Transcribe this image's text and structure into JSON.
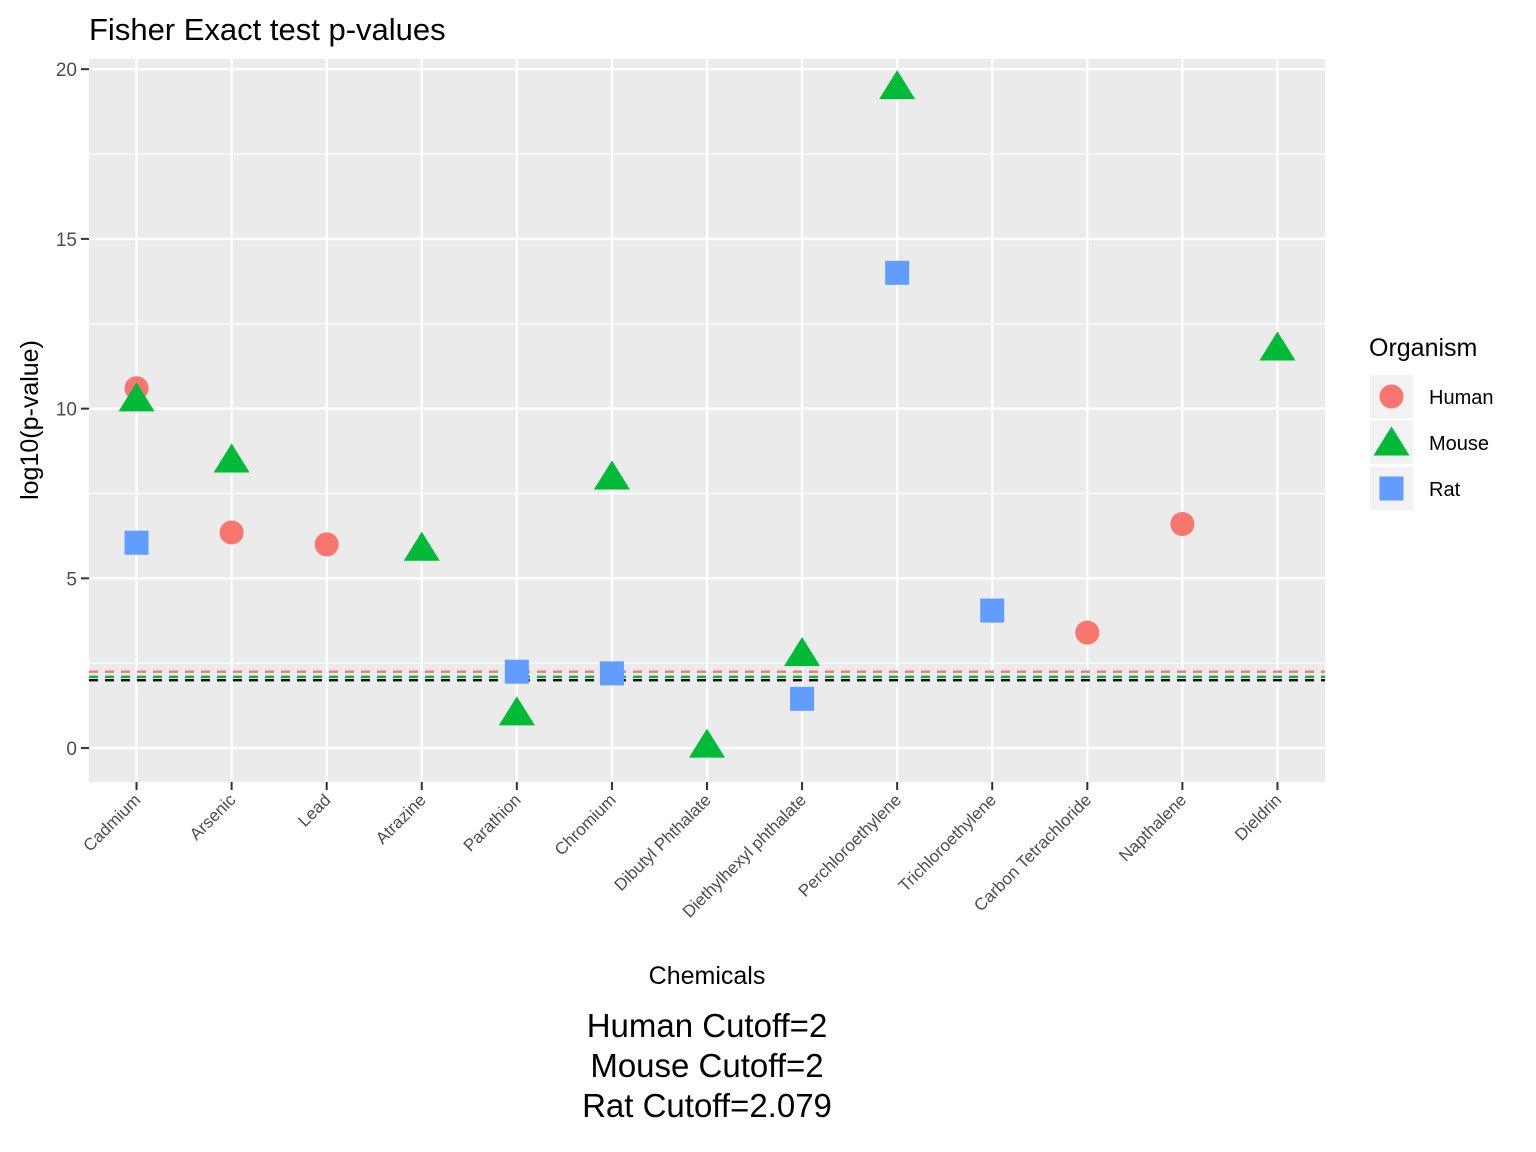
{
  "chart_data": {
    "type": "scatter",
    "title": "Fisher Exact test p-values",
    "xlabel": "Chemicals",
    "ylabel": "log10(p-value)",
    "ylim": [
      -1,
      20.3
    ],
    "yticks": [
      0,
      5,
      10,
      15,
      20
    ],
    "grid": true,
    "legend_title": "Organism",
    "legend_position": "right",
    "categories": [
      "Cadmium",
      "Arsenic",
      "Lead",
      "Atrazine",
      "Parathion",
      "Chromium",
      "Dibutyl Phthalate",
      "Diethylhexyl phthalate",
      "Perchloroethylene",
      "Trichloroethylene",
      "Carbon Tetrachloride",
      "Napthalene",
      "Dieldrin"
    ],
    "series": [
      {
        "name": "Human",
        "color": "#F8766D",
        "marker": "circle",
        "points": [
          {
            "x": "Cadmium",
            "y": 10.6
          },
          {
            "x": "Arsenic",
            "y": 6.35
          },
          {
            "x": "Lead",
            "y": 6.0
          },
          {
            "x": "Carbon Tetrachloride",
            "y": 3.4
          },
          {
            "x": "Napthalene",
            "y": 6.6
          }
        ]
      },
      {
        "name": "Mouse",
        "color": "#00BA38",
        "marker": "triangle",
        "points": [
          {
            "x": "Cadmium",
            "y": 10.3
          },
          {
            "x": "Arsenic",
            "y": 8.5
          },
          {
            "x": "Atrazine",
            "y": 5.9
          },
          {
            "x": "Parathion",
            "y": 1.05
          },
          {
            "x": "Chromium",
            "y": 8.0
          },
          {
            "x": "Dibutyl Phthalate",
            "y": 0.1
          },
          {
            "x": "Diethylhexyl phthalate",
            "y": 2.8
          },
          {
            "x": "Perchloroethylene",
            "y": 19.5
          },
          {
            "x": "Dieldrin",
            "y": 11.8
          }
        ]
      },
      {
        "name": "Rat",
        "color": "#619CFF",
        "marker": "square",
        "points": [
          {
            "x": "Cadmium",
            "y": 6.05
          },
          {
            "x": "Parathion",
            "y": 2.25
          },
          {
            "x": "Chromium",
            "y": 2.2
          },
          {
            "x": "Diethylhexyl phthalate",
            "y": 1.45
          },
          {
            "x": "Perchloroethylene",
            "y": 14.0
          },
          {
            "x": "Trichloroethylene",
            "y": 4.05
          }
        ]
      }
    ],
    "reference_lines": [
      {
        "y": 2.25,
        "color": "#F8766D",
        "style": "dashed"
      },
      {
        "y": 2.1,
        "color": "#00BA38",
        "style": "dashed"
      },
      {
        "y": 2.0,
        "color": "#000000",
        "style": "dashed"
      }
    ],
    "caption_lines": [
      "Human Cutoff=2",
      "Mouse Cutoff=2",
      "Rat Cutoff=2.079"
    ]
  }
}
